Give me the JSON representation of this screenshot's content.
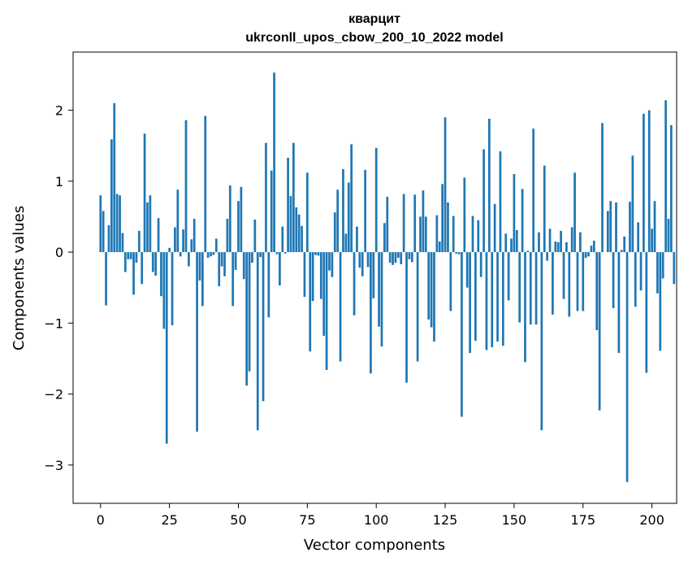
{
  "chart_data": {
    "type": "bar",
    "title_line1": "кварцит",
    "title_line2": "ukrconll_upos_cbow_200_10_2022 model",
    "xlabel": "Vector components",
    "ylabel": "Components values",
    "xlim": [
      -9.95,
      208.95
    ],
    "ylim": [
      -3.54,
      2.82
    ],
    "xticks": [
      0,
      25,
      50,
      75,
      100,
      125,
      150,
      175,
      200
    ],
    "yticks": [
      -3,
      -2,
      -1,
      0,
      1,
      2
    ],
    "bar_color": "#1f77b4",
    "values": [
      0.8,
      0.58,
      -0.75,
      0.38,
      1.59,
      2.1,
      0.82,
      0.8,
      0.27,
      -0.28,
      -0.1,
      -0.1,
      -0.6,
      -0.15,
      0.3,
      -0.45,
      1.67,
      0.7,
      0.8,
      -0.28,
      -0.33,
      0.48,
      -0.62,
      -1.08,
      -2.7,
      0.06,
      -1.03,
      0.35,
      0.88,
      -0.06,
      0.32,
      1.86,
      -0.2,
      0.18,
      0.47,
      -2.53,
      -0.4,
      -0.76,
      1.92,
      -0.08,
      -0.06,
      -0.04,
      0.19,
      -0.48,
      -0.2,
      -0.34,
      0.47,
      0.94,
      -0.76,
      -0.25,
      0.72,
      0.92,
      -0.38,
      -1.88,
      -1.68,
      -0.15,
      0.46,
      -2.51,
      -0.07,
      -2.1,
      1.54,
      -0.92,
      1.15,
      2.53,
      -0.03,
      -0.47,
      0.36,
      -0.02,
      1.33,
      0.79,
      1.54,
      0.63,
      0.53,
      0.37,
      -0.63,
      1.12,
      -1.4,
      -0.69,
      -0.04,
      -0.05,
      -0.66,
      -1.18,
      -1.66,
      -0.26,
      -0.35,
      0.56,
      0.88,
      -1.54,
      1.17,
      0.26,
      0.98,
      1.52,
      -0.89,
      0.36,
      -0.22,
      -0.34,
      1.16,
      -0.21,
      -1.71,
      -0.65,
      1.47,
      -1.05,
      -1.33,
      0.41,
      0.78,
      -0.15,
      -0.18,
      -0.15,
      -0.08,
      -0.17,
      0.82,
      -1.84,
      -0.1,
      -0.14,
      0.81,
      -1.54,
      0.5,
      0.87,
      0.5,
      -0.95,
      -1.06,
      -1.26,
      0.52,
      0.15,
      0.96,
      1.9,
      0.7,
      -0.83,
      0.51,
      -0.02,
      -0.03,
      -2.32,
      1.05,
      -0.5,
      -1.42,
      0.51,
      -1.25,
      0.45,
      -0.35,
      1.45,
      -1.38,
      1.88,
      -1.34,
      0.68,
      -1.26,
      1.42,
      -1.32,
      0.26,
      -0.68,
      0.19,
      1.1,
      0.31,
      -0.99,
      0.89,
      -1.55,
      0.02,
      -1.02,
      1.74,
      -1.02,
      0.28,
      -2.51,
      1.22,
      -0.12,
      0.33,
      -0.88,
      0.15,
      0.14,
      0.3,
      -0.66,
      0.14,
      -0.91,
      0.35,
      1.12,
      -0.83,
      0.28,
      -0.83,
      -0.08,
      -0.06,
      0.09,
      0.16,
      -1.1,
      -2.23,
      1.82,
      0.0,
      0.58,
      0.72,
      -0.79,
      0.7,
      -1.42,
      0.03,
      0.22,
      -3.24,
      0.71,
      1.36,
      -0.77,
      0.42,
      -0.54,
      1.95,
      -1.7,
      2.0,
      0.33,
      0.72,
      -0.58,
      -1.39,
      -0.37,
      2.14,
      0.47,
      1.79,
      -0.45
    ]
  }
}
